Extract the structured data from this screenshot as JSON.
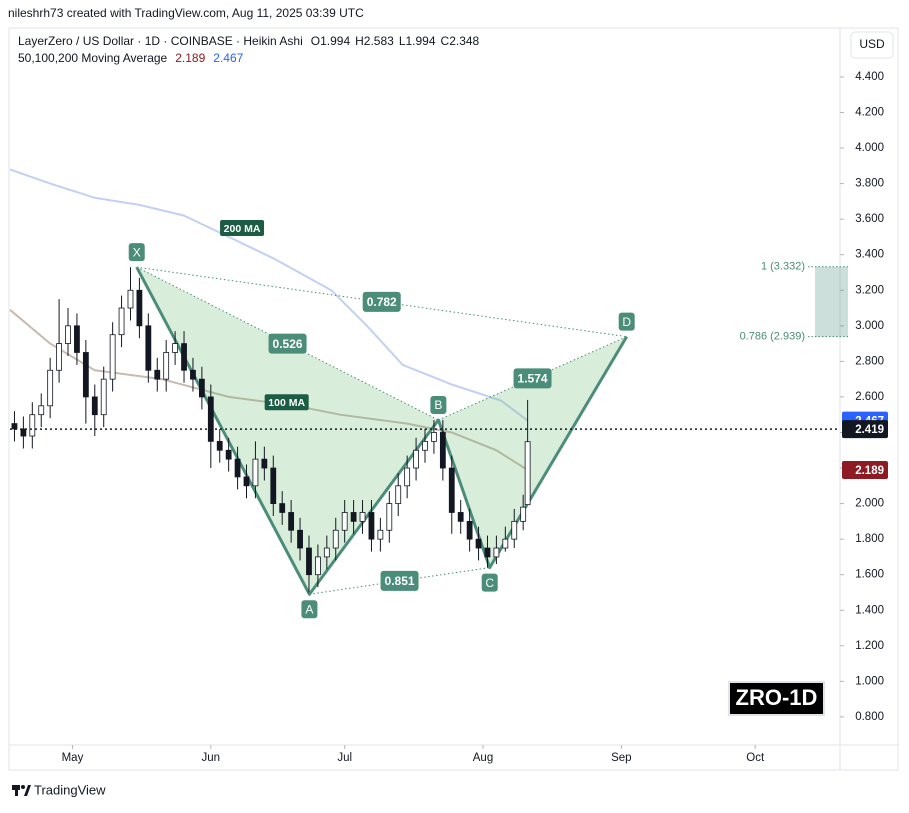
{
  "header": "nileshrh73 created with TradingView.com, Aug 11, 2025 03:39 UTC",
  "footer": "TradingView",
  "currency": "USD",
  "symbol_badge": "ZRO-1D",
  "chart_data": {
    "type": "candlestick",
    "title": "LayerZero / US Dollar · 1D · COINBASE · Heikin Ashi",
    "ohlc_legend": [
      "O1.994",
      "H2.583",
      "L1.994",
      "C2.348"
    ],
    "ma_legend": "50,100,200 Moving Average",
    "x": [
      -13,
      -11,
      -9,
      -7,
      -5,
      -3,
      -1,
      1,
      3,
      5,
      7,
      9,
      11,
      13,
      15,
      17,
      19,
      21,
      23,
      25,
      27,
      29,
      31,
      33,
      35,
      37,
      39,
      41,
      43,
      45,
      47,
      49,
      51,
      53,
      55,
      57,
      59,
      61,
      63,
      65,
      67,
      69,
      71,
      73,
      75,
      77,
      79,
      81,
      83,
      85,
      87,
      89,
      91,
      93,
      95,
      97,
      99,
      101,
      102
    ],
    "open": [
      2.45,
      2.42,
      2.38,
      2.5,
      2.55,
      2.75,
      2.9,
      3.0,
      2.85,
      2.6,
      2.5,
      2.7,
      2.95,
      3.1,
      3.2,
      3.0,
      2.75,
      2.7,
      2.85,
      2.9,
      2.75,
      2.7,
      2.6,
      2.35,
      2.3,
      2.25,
      2.15,
      2.1,
      2.25,
      2.2,
      2.0,
      1.95,
      1.85,
      1.75,
      1.6,
      1.7,
      1.75,
      1.85,
      1.95,
      1.9,
      1.95,
      1.8,
      1.85,
      2.0,
      2.1,
      2.2,
      2.3,
      2.35,
      2.4,
      2.2,
      1.95,
      1.9,
      1.8,
      1.75,
      1.7,
      1.75,
      1.8,
      1.9,
      1.994
    ],
    "high": [
      2.52,
      2.49,
      2.57,
      2.62,
      2.82,
      3.15,
      3.1,
      3.07,
      2.92,
      2.67,
      2.77,
      3.02,
      3.17,
      3.33,
      3.27,
      3.07,
      2.82,
      2.92,
      2.97,
      2.97,
      2.82,
      2.77,
      2.67,
      2.42,
      2.37,
      2.32,
      2.22,
      2.35,
      2.32,
      2.27,
      2.07,
      2.02,
      1.92,
      1.82,
      1.77,
      1.82,
      1.92,
      2.02,
      2.02,
      2.02,
      2.02,
      1.92,
      2.07,
      2.17,
      2.27,
      2.37,
      2.42,
      2.47,
      2.47,
      2.27,
      2.02,
      1.97,
      1.87,
      1.82,
      1.82,
      1.87,
      1.97,
      2.05,
      2.583
    ],
    "low": [
      2.35,
      2.31,
      2.31,
      2.43,
      2.48,
      2.68,
      2.83,
      2.78,
      2.45,
      2.38,
      2.43,
      2.63,
      2.88,
      3.03,
      2.93,
      2.68,
      2.63,
      2.63,
      2.78,
      2.68,
      2.63,
      2.53,
      2.2,
      2.23,
      2.18,
      2.08,
      2.03,
      2.03,
      2.13,
      1.93,
      1.88,
      1.78,
      1.68,
      1.5,
      1.53,
      1.63,
      1.68,
      1.78,
      1.83,
      1.83,
      1.73,
      1.73,
      1.78,
      1.93,
      2.03,
      2.13,
      2.23,
      2.28,
      2.13,
      1.83,
      1.83,
      1.73,
      1.68,
      1.64,
      1.66,
      1.73,
      1.75,
      1.85,
      1.994
    ],
    "close": [
      2.42,
      2.38,
      2.5,
      2.55,
      2.75,
      2.9,
      3.0,
      2.85,
      2.6,
      2.5,
      2.7,
      2.95,
      3.1,
      3.2,
      3.0,
      2.75,
      2.7,
      2.85,
      2.9,
      2.75,
      2.7,
      2.6,
      2.35,
      2.3,
      2.25,
      2.15,
      2.1,
      2.25,
      2.2,
      2.0,
      1.95,
      1.85,
      1.75,
      1.6,
      1.7,
      1.75,
      1.85,
      1.95,
      1.9,
      1.95,
      1.8,
      1.85,
      2.0,
      2.1,
      2.2,
      2.3,
      2.35,
      2.4,
      2.2,
      1.95,
      1.9,
      1.8,
      1.75,
      1.7,
      1.75,
      1.8,
      1.9,
      1.98,
      2.348
    ],
    "up_color": "#ffffff",
    "down_color": "#131722",
    "series": [
      {
        "name": "100 MA",
        "color": "#c8b9b1",
        "label_color": "#8e1b24",
        "x": [
          -14,
          -5,
          5,
          20,
          35,
          50,
          60,
          75,
          85,
          95,
          102
        ],
        "values": [
          3.09,
          2.9,
          2.75,
          2.7,
          2.6,
          2.55,
          2.5,
          2.45,
          2.4,
          2.3,
          2.189
        ]
      },
      {
        "name": "200 MA",
        "color": "#c3d0f4",
        "label_color": "#2962ff",
        "x": [
          -14,
          -5,
          5,
          15,
          25,
          35,
          45,
          58,
          66,
          74,
          85,
          96,
          102
        ],
        "values": [
          3.88,
          3.8,
          3.72,
          3.68,
          3.62,
          3.5,
          3.38,
          3.2,
          3.0,
          2.78,
          2.67,
          2.58,
          2.467
        ]
      }
    ],
    "last_price": 2.419,
    "pattern": {
      "points": [
        {
          "label": "X",
          "x": 14.4,
          "y": 3.33
        },
        {
          "label": "A",
          "x": 53.1,
          "y": 1.49
        },
        {
          "label": "B",
          "x": 82,
          "y": 2.47
        },
        {
          "label": "C",
          "x": 93.5,
          "y": 1.64
        },
        {
          "label": "D",
          "x": 124.2,
          "y": 2.939
        }
      ],
      "ratios": [
        0.526,
        0.782,
        0.851,
        1.574
      ]
    },
    "fib_levels": [
      {
        "value": 3.332,
        "label": "1 (3.332)"
      },
      {
        "value": 2.939,
        "label": "0.786 (2.939)"
      }
    ],
    "xlim": [
      -14,
      172
    ],
    "xticks": [
      {
        "value": 0,
        "label": "May"
      },
      {
        "value": 31,
        "label": "Jun"
      },
      {
        "value": 61,
        "label": "Jul"
      },
      {
        "value": 92,
        "label": "Aug"
      },
      {
        "value": 123,
        "label": "Sep"
      },
      {
        "value": 153,
        "label": "Oct"
      }
    ],
    "ylim": [
      0.642,
      4.664
    ],
    "yticks": [
      {
        "value": 0.8,
        "label": "0.800"
      },
      {
        "value": 1.0,
        "label": "1.000"
      },
      {
        "value": 1.2,
        "label": "1.200"
      },
      {
        "value": 1.4,
        "label": "1.400"
      },
      {
        "value": 1.6,
        "label": "1.600"
      },
      {
        "value": 1.8,
        "label": "1.800"
      },
      {
        "value": 2.0,
        "label": "2.000"
      },
      {
        "value": 2.2,
        "label": "2.200"
      },
      {
        "value": 2.4,
        "label": "2.400"
      },
      {
        "value": 2.6,
        "label": "2.600"
      },
      {
        "value": 2.8,
        "label": "2.800"
      },
      {
        "value": 3.0,
        "label": "3.000"
      },
      {
        "value": 3.2,
        "label": "3.200"
      },
      {
        "value": 3.4,
        "label": "3.400"
      },
      {
        "value": 3.6,
        "label": "3.600"
      },
      {
        "value": 3.8,
        "label": "3.800"
      },
      {
        "value": 4.0,
        "label": "4.000"
      },
      {
        "value": 4.2,
        "label": "4.200"
      },
      {
        "value": 4.4,
        "label": "4.400"
      }
    ]
  }
}
